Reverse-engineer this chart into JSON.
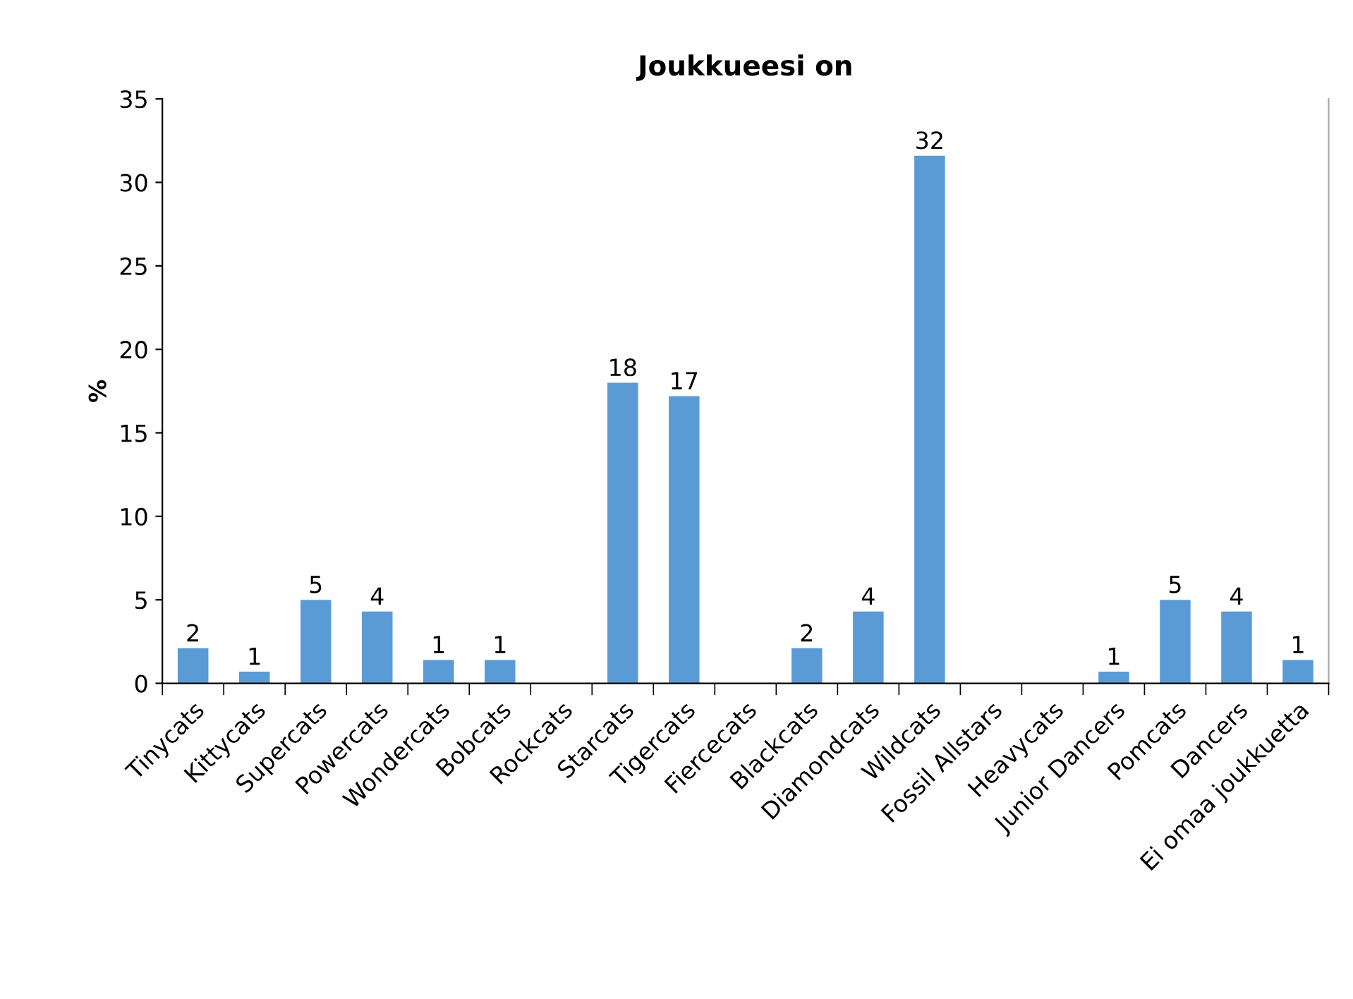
{
  "chart_data": {
    "type": "bar",
    "title": "Joukkueesi on",
    "ylabel": "%",
    "categories": [
      "Tinycats",
      "Kittycats",
      "Supercats",
      "Powercats",
      "Wondercats",
      "Bobcats",
      "Rockcats",
      "Starcats",
      "Tigercats",
      "Fiercecats",
      "Blackcats",
      "Diamondcats",
      "Wildcats",
      "Fossil Allstars",
      "Heavycats",
      "Junior Dancers",
      "Pomcats",
      "Dancers",
      "Ei omaa joukkuetta"
    ],
    "values": [
      2.1,
      0.7,
      5.0,
      4.3,
      1.4,
      1.4,
      0,
      18.0,
      17.2,
      0,
      2.1,
      4.3,
      31.6,
      0,
      0,
      0.7,
      5.0,
      4.3,
      1.4
    ],
    "value_labels": [
      "2",
      "1",
      "5",
      "4",
      "1",
      "1",
      null,
      "18",
      "17",
      null,
      "2",
      "4",
      "32",
      null,
      null,
      "1",
      "5",
      "4",
      "1"
    ],
    "color": "#5b9bd5",
    "ylim": [
      0,
      35
    ],
    "yticks": [
      0,
      5,
      10,
      15,
      20,
      25,
      30,
      35
    ],
    "grid": false
  }
}
